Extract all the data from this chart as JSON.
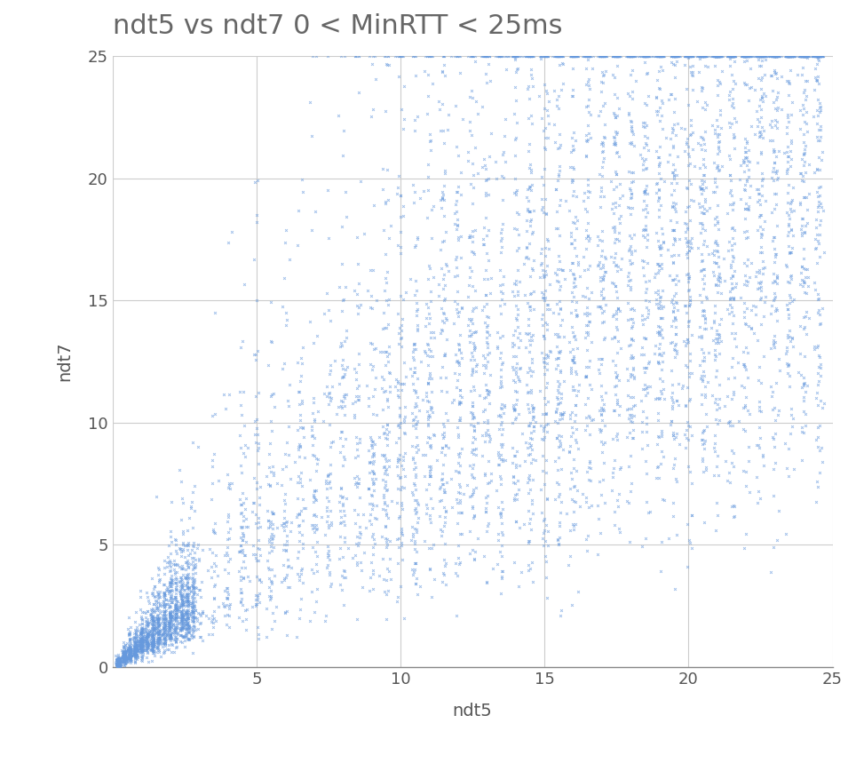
{
  "title": "ndt5 vs ndt7 0 < MinRTT < 25ms",
  "xlabel": "ndt5",
  "ylabel": "ndt7",
  "xlim": [
    0,
    25
  ],
  "ylim": [
    0,
    25
  ],
  "xticks": [
    0,
    5,
    10,
    15,
    20,
    25
  ],
  "yticks": [
    0,
    5,
    10,
    15,
    20,
    25
  ],
  "marker_color": "#6699dd",
  "marker": "x",
  "marker_size": 4,
  "marker_linewidth": 0.7,
  "marker_alpha": 0.6,
  "title_color": "#666666",
  "title_fontsize": 22,
  "label_fontsize": 14,
  "tick_fontsize": 13,
  "grid_color": "#cccccc",
  "grid_linewidth": 0.8,
  "background_color": "#ffffff",
  "n_points": 25000,
  "seed": 42
}
